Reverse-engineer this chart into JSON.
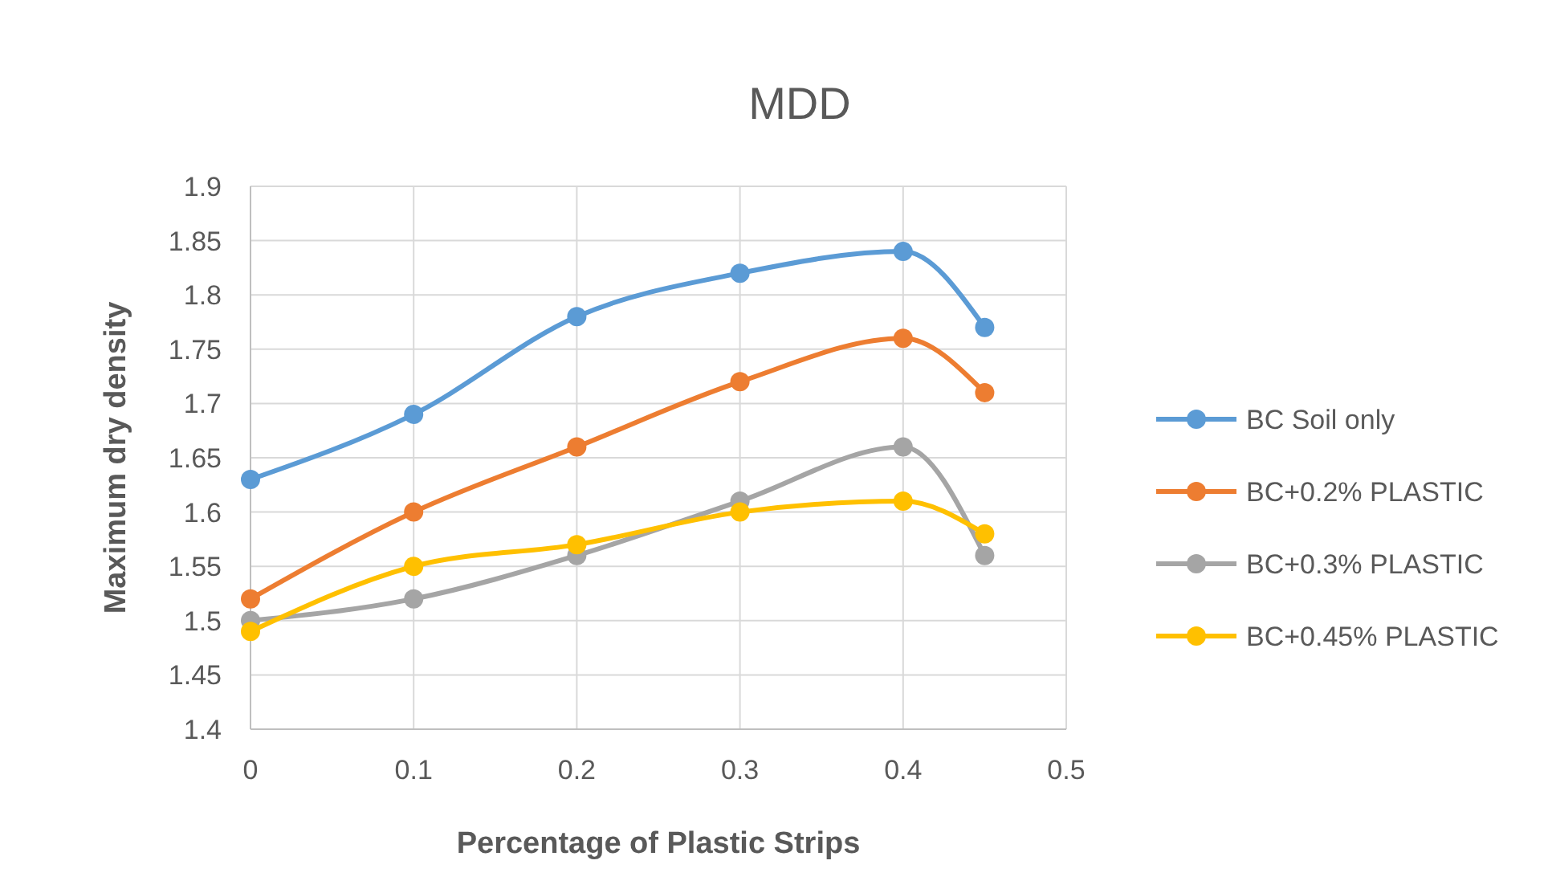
{
  "chart_data": {
    "type": "line",
    "title": "MDD",
    "xlabel": "Percentage of Plastic Strips",
    "ylabel": "Maximum dry density",
    "x": [
      0,
      0.1,
      0.2,
      0.3,
      0.4,
      0.45
    ],
    "series": [
      {
        "name": "BC Soil only",
        "color": "#5b9bd5",
        "values": [
          1.63,
          1.69,
          1.78,
          1.82,
          1.84,
          1.77
        ]
      },
      {
        "name": "BC+0.2% PLASTIC",
        "color": "#ed7d31",
        "values": [
          1.52,
          1.6,
          1.66,
          1.72,
          1.76,
          1.71
        ]
      },
      {
        "name": "BC+0.3% PLASTIC",
        "color": "#a5a5a5",
        "values": [
          1.5,
          1.52,
          1.56,
          1.61,
          1.66,
          1.56
        ]
      },
      {
        "name": "BC+0.45% PLASTIC",
        "color": "#ffc000",
        "values": [
          1.49,
          1.55,
          1.57,
          1.6,
          1.61,
          1.58
        ]
      }
    ],
    "xlim": [
      0,
      0.5
    ],
    "xticks": [
      0,
      0.1,
      0.2,
      0.3,
      0.4,
      0.5
    ],
    "ylim": [
      1.4,
      1.9
    ],
    "yticks": [
      1.4,
      1.45,
      1.5,
      1.55,
      1.6,
      1.65,
      1.7,
      1.75,
      1.8,
      1.85,
      1.9
    ],
    "grid": true,
    "legend": "right",
    "marker": "circle",
    "line_style": "solid"
  }
}
